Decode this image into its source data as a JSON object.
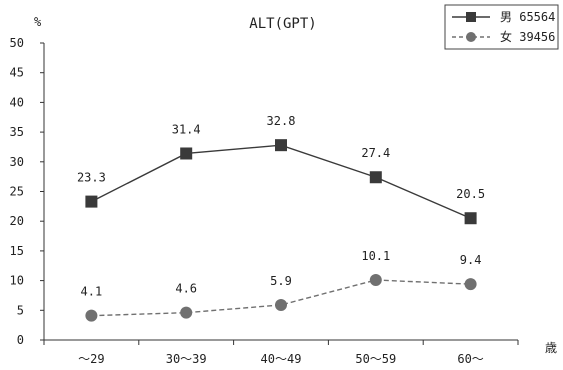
{
  "chart_data": {
    "type": "line",
    "title": "ALT(GPT)",
    "ylabel": "%",
    "xlabel": "歳",
    "categories": [
      "～29",
      "30～39",
      "40～49",
      "50～59",
      "60～"
    ],
    "ylim": [
      0,
      50
    ],
    "yticks": [
      0,
      5,
      10,
      15,
      20,
      25,
      30,
      35,
      40,
      45,
      50
    ],
    "grid": false,
    "legend_position": "top-right",
    "series": [
      {
        "name": "男 65564",
        "values": [
          23.3,
          31.4,
          32.8,
          27.4,
          20.5
        ],
        "labels": [
          "23.3",
          "31.4",
          "32.8",
          "27.4",
          "20.5"
        ],
        "color": "#3a3a3a",
        "marker": "square",
        "line": "solid"
      },
      {
        "name": "女 39456",
        "values": [
          4.1,
          4.6,
          5.9,
          10.1,
          9.4
        ],
        "labels": [
          "4.1",
          "4.6",
          "5.9",
          "10.1",
          "9.4"
        ],
        "color": "#707070",
        "marker": "circle",
        "line": "dashed"
      }
    ]
  }
}
